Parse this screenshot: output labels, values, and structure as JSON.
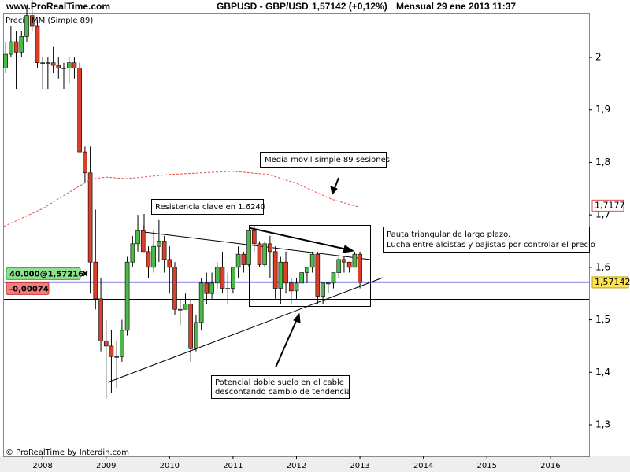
{
  "chart_data": {
    "type": "candlestick",
    "header": {
      "site": "www.ProRealTime.com",
      "instrument": "GBPUSD - GBP/USD",
      "quote": "1,57142 (+0,12%)",
      "period": "Mensual  29 ene 2013 11:37"
    },
    "footer": "© ProRealTime by Interdin.com",
    "price_name": "Precio",
    "up_color": "#4cb848",
    "down_color": "#d8402a",
    "x": [
      2007.417,
      2007.5,
      2007.583,
      2007.667,
      2007.75,
      2007.833,
      2007.917,
      2008,
      2008.083,
      2008.167,
      2008.25,
      2008.333,
      2008.417,
      2008.5,
      2008.583,
      2008.667,
      2008.75,
      2008.833,
      2008.917,
      2009,
      2009.083,
      2009.167,
      2009.25,
      2009.333,
      2009.417,
      2009.5,
      2009.583,
      2009.667,
      2009.75,
      2009.833,
      2009.917,
      2010,
      2010.083,
      2010.167,
      2010.25,
      2010.333,
      2010.417,
      2010.5,
      2010.583,
      2010.667,
      2010.75,
      2010.833,
      2010.917,
      2011,
      2011.083,
      2011.167,
      2011.25,
      2011.333,
      2011.417,
      2011.5,
      2011.583,
      2011.667,
      2011.75,
      2011.833,
      2011.917,
      2012,
      2012.083,
      2012.167,
      2012.25,
      2012.333,
      2012.417,
      2012.5,
      2012.583,
      2012.667,
      2012.75,
      2012.833,
      2012.917,
      2013
    ],
    "open": [
      1.98,
      2.006,
      2.03,
      2.01,
      2.04,
      2.08,
      2.06,
      1.99,
      1.99,
      1.99,
      1.985,
      1.98,
      1.98,
      1.99,
      1.98,
      1.82,
      1.78,
      1.61,
      1.54,
      1.46,
      1.45,
      1.43,
      1.43,
      1.48,
      1.61,
      1.645,
      1.67,
      1.63,
      1.6,
      1.64,
      1.65,
      1.615,
      1.6,
      1.52,
      1.52,
      1.53,
      1.445,
      1.495,
      1.57,
      1.55,
      1.57,
      1.6,
      1.56,
      1.56,
      1.6,
      1.625,
      1.605,
      1.67,
      1.645,
      1.605,
      1.645,
      1.63,
      1.56,
      1.61,
      1.57,
      1.555,
      1.57,
      1.59,
      1.6,
      1.625,
      1.545,
      1.57,
      1.57,
      1.59,
      1.615,
      1.61,
      1.6,
      1.625
    ],
    "high": [
      2.03,
      2.06,
      2.05,
      2.05,
      2.1,
      2.11,
      2.07,
      2.0,
      2.0,
      2.02,
      2.0,
      1.99,
      2.0,
      2.0,
      1.99,
      1.83,
      1.83,
      1.71,
      1.58,
      1.5,
      1.48,
      1.46,
      1.5,
      1.62,
      1.66,
      1.7,
      1.68,
      1.64,
      1.67,
      1.69,
      1.66,
      1.64,
      1.61,
      1.54,
      1.55,
      1.54,
      1.51,
      1.58,
      1.59,
      1.59,
      1.61,
      1.63,
      1.59,
      1.6,
      1.64,
      1.63,
      1.67,
      1.68,
      1.65,
      1.65,
      1.66,
      1.64,
      1.62,
      1.63,
      1.58,
      1.58,
      1.59,
      1.6,
      1.63,
      1.63,
      1.57,
      1.57,
      1.59,
      1.62,
      1.62,
      1.61,
      1.63,
      1.63
    ],
    "low": [
      1.97,
      2.0,
      1.94,
      2.0,
      2.03,
      2.05,
      1.98,
      1.94,
      1.94,
      1.97,
      1.96,
      1.94,
      1.95,
      1.96,
      1.82,
      1.76,
      1.55,
      1.52,
      1.44,
      1.35,
      1.36,
      1.37,
      1.42,
      1.47,
      1.6,
      1.63,
      1.63,
      1.58,
      1.59,
      1.61,
      1.59,
      1.55,
      1.51,
      1.49,
      1.52,
      1.42,
      1.44,
      1.48,
      1.53,
      1.54,
      1.56,
      1.55,
      1.53,
      1.55,
      1.58,
      1.59,
      1.6,
      1.63,
      1.6,
      1.6,
      1.58,
      1.54,
      1.53,
      1.55,
      1.53,
      1.54,
      1.57,
      1.57,
      1.59,
      1.53,
      1.53,
      1.55,
      1.56,
      1.58,
      1.59,
      1.59,
      1.6,
      1.56
    ],
    "close": [
      2.006,
      2.03,
      2.01,
      2.04,
      2.08,
      2.06,
      1.99,
      1.99,
      1.99,
      1.985,
      1.98,
      1.98,
      1.99,
      1.98,
      1.82,
      1.78,
      1.61,
      1.54,
      1.46,
      1.45,
      1.43,
      1.43,
      1.48,
      1.61,
      1.645,
      1.67,
      1.63,
      1.6,
      1.64,
      1.65,
      1.615,
      1.6,
      1.52,
      1.52,
      1.53,
      1.445,
      1.495,
      1.57,
      1.55,
      1.57,
      1.6,
      1.56,
      1.56,
      1.6,
      1.625,
      1.605,
      1.67,
      1.645,
      1.605,
      1.645,
      1.63,
      1.56,
      1.61,
      1.57,
      1.555,
      1.57,
      1.59,
      1.6,
      1.625,
      1.545,
      1.57,
      1.57,
      1.59,
      1.615,
      1.61,
      1.6,
      1.625,
      1.5714
    ],
    "series": [
      {
        "name": "MM (Simple 89)",
        "color": "#e05050",
        "x": [
          2007.39,
          2008,
          2008.51,
          2008.76,
          2009,
          2009.32,
          2010,
          2011,
          2011.56,
          2012,
          2012.55,
          2012.98
        ],
        "values": [
          1.678,
          1.712,
          1.75,
          1.768,
          1.772,
          1.769,
          1.777,
          1.783,
          1.777,
          1.76,
          1.73,
          1.715
        ]
      }
    ],
    "xlim": [
      2007.39,
      2016.61
    ],
    "xticks": [
      2008,
      2009,
      2010,
      2011,
      2012,
      2013,
      2014,
      2015,
      2016
    ],
    "ylim": [
      1.24,
      2.087
    ],
    "yticks": [
      2,
      {
        "value": 1.9,
        "label": "1,9"
      },
      {
        "value": 1.8,
        "label": "1,8"
      },
      {
        "value": 1.7,
        "label": "1,7"
      },
      {
        "value": 1.6,
        "label": "1,6"
      },
      {
        "value": 1.5,
        "label": "1,5"
      },
      {
        "value": 1.4,
        "label": "1,4"
      },
      {
        "value": 1.3,
        "label": "1,3"
      }
    ],
    "last_price": {
      "value": 1.57142,
      "label": "1,57142",
      "color": "#0000c0"
    },
    "ma_last": {
      "value": 1.7177,
      "label": "1,7177"
    },
    "position": {
      "value": 1.57216,
      "label": "40.000@1,57216"
    },
    "pnl": {
      "value": -0.00074,
      "label": "-0,00074"
    },
    "support_level": 1.539,
    "annotations": [
      {
        "lines": [
          "Media movil simple 89 sesiones"
        ]
      },
      {
        "lines": [
          "Resistencia clave en 1.6240"
        ]
      },
      {
        "lines": [
          "Pauta triangular de largo plazo.",
          "Lucha entre alcistas y bajistas por controlar el precio"
        ]
      },
      {
        "lines": [
          "Potencial doble suelo en el cable",
          "descontando cambio de tendencia"
        ]
      }
    ]
  }
}
